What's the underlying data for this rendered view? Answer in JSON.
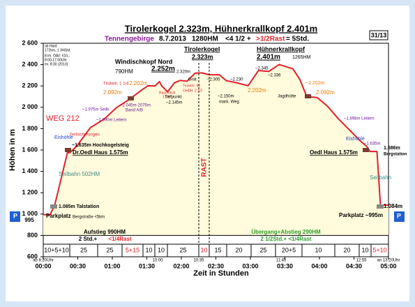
{
  "chart_data": {
    "type": "line",
    "title": "Tirolerkogel 2.323m, Hühnerkrallkopf 2.401m",
    "subtitle_parts": [
      "Tennengebirge",
      "8.7.2013",
      "1280HM",
      "<4 1/2 +",
      ">1/2Rast",
      "= 5Std."
    ],
    "badge": "31/13",
    "x_label": "Zeit in Stunden",
    "y_label": "Höhen in m",
    "color": "#e0202a",
    "fill_color": "#fffbdc",
    "x": [
      0,
      6,
      10,
      21,
      23,
      29,
      41,
      53,
      64,
      75,
      84,
      91,
      97,
      101,
      103,
      108,
      114,
      119,
      125,
      132,
      138,
      144,
      153,
      159,
      168,
      178,
      187,
      196,
      205,
      217,
      223,
      229,
      238,
      247,
      256,
      265,
      275,
      281,
      284,
      290,
      293,
      300
    ],
    "values": [
      995,
      995,
      1085,
      1575,
      1575,
      1635,
      1810,
      1890,
      2000,
      2075,
      2150,
      2202,
      2200,
      2240,
      2200,
      2145,
      2230,
      2252,
      2245,
      2320,
      2323,
      2305,
      2305,
      2250,
      2230,
      2202,
      2345,
      2336,
      2401,
      2360,
      2260,
      2100,
      2092,
      2010,
      1898,
      1800,
      1690,
      1635,
      1586,
      1586,
      1084,
      1084
    ],
    "xlim": [
      0,
      300
    ],
    "ylim": [
      600,
      2600
    ],
    "xticks": [
      {
        "value": 0,
        "label": "00:00"
      },
      {
        "value": 30,
        "label": "00:30"
      },
      {
        "value": 60,
        "label": "01:00"
      },
      {
        "value": 90,
        "label": "01:30"
      },
      {
        "value": 120,
        "label": "02:00"
      },
      {
        "value": 150,
        "label": "02:30"
      },
      {
        "value": 180,
        "label": "03:00"
      },
      {
        "value": 210,
        "label": "03:30"
      },
      {
        "value": 240,
        "label": "04:00"
      },
      {
        "value": 270,
        "label": "04:30"
      },
      {
        "value": 300,
        "label": "05:00"
      }
    ],
    "yticks": [
      {
        "value": 600,
        "label": "600"
      },
      800,
      {
        "value": 1000,
        "label": "1 000"
      },
      {
        "value": 1200,
        "label": "1 200"
      },
      {
        "value": 1400,
        "label": "1 400"
      },
      {
        "value": 1600,
        "label": "1 600"
      },
      {
        "value": 1800,
        "label": "1 800"
      },
      {
        "value": 2000,
        "label": "2 000"
      },
      {
        "value": 2200,
        "label": "2 200"
      },
      {
        "value": 2400,
        "label": "2 400"
      },
      {
        "value": 2600,
        "label": "2 600"
      }
    ],
    "segments": [
      "10+5+10",
      "25",
      "25",
      "5+15",
      "10",
      "10",
      "25",
      "10",
      "15",
      "20",
      "25",
      "20+5",
      "10",
      "20",
      "10",
      "5+10"
    ],
    "time_marks": [
      "ab 8:20Uhr",
      "10:00",
      "10:35",
      "11:45",
      "12:55",
      "an 13:20Uhr"
    ],
    "annotations": [
      "ab Haid:",
      "172km, 1 3/4Std.",
      "Erm. ÖAV: €10,-",
      "8:00-17:00Uhr",
      "ev. 8:30 (2013)",
      "WEG 212",
      "Eishöhle",
      "Seilsicherungen",
      "~1.635m Hochkogelsteig",
      "Dr.Oedl Haus 1.575m",
      "Seilbahn 502HM",
      "1.085m Talstation",
      "Parkplatz",
      "Bergstraße <5km",
      "995",
      "P",
      "~1.975m Seilk.",
      "~1.890m Leitern",
      "2.092m",
      "~2.045m-2075m",
      "Band A/B",
      "Tirolerk. 1 1/4",
      "2.202m",
      "Rauchleck",
      "1 1/2",
      "Tiefpunkt",
      "~2.145m",
      "Windischkopf Nord",
      "790HM",
      "2.252m",
      "2.320m",
      "Grat",
      "Tirolerk. 40",
      "OedlH. 2 1/2",
      "Tirolerkogel",
      "2.323m",
      "~2.305",
      "~2.230",
      "~2.150m",
      "mark. Weg",
      "2.202m",
      "Hühnerkrallkopf",
      "2.401m",
      "1265HM",
      "~2.345",
      "~2.336",
      "Jagdhütte",
      "~2.202m",
      "2.092m",
      "~1.898m Leitern",
      "Eishöhle",
      "~1.635m",
      "Oedl Haus 1.575m",
      "1.586m",
      "Bergstation",
      "Seilbahn",
      "1.084m",
      "Parkplatz ~995m",
      "P",
      "RAST",
      "Aufstieg 990HM",
      "2 Std.+",
      "<1/4Rast",
      "Übergang+Abstieg 290HM",
      "2 1/2Std.+ <1/4Rast"
    ]
  }
}
